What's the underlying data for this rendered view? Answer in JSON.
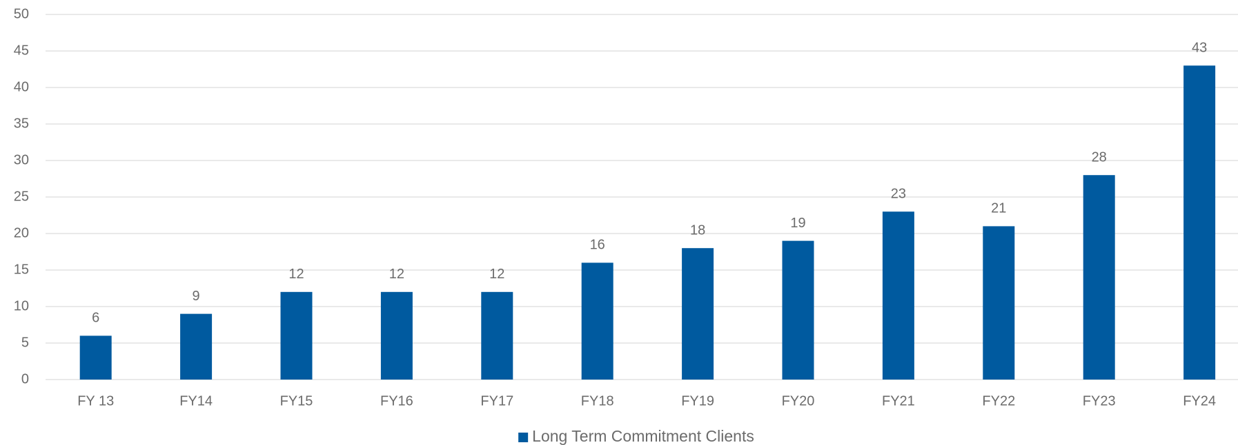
{
  "chart_data": {
    "type": "bar",
    "categories": [
      "FY 13",
      "FY14",
      "FY15",
      "FY16",
      "FY17",
      "FY18",
      "FY19",
      "FY20",
      "FY21",
      "FY22",
      "FY23",
      "FY24"
    ],
    "series": [
      {
        "name": "Long Term Commitment Clients",
        "color": "#005a9f",
        "values": [
          6,
          9,
          12,
          12,
          12,
          16,
          18,
          19,
          23,
          21,
          28,
          43
        ]
      }
    ],
    "ylim": [
      0,
      50
    ],
    "yticks": [
      0,
      5,
      10,
      15,
      20,
      25,
      30,
      35,
      40,
      45,
      50
    ],
    "grid": true,
    "legend": "bottom"
  }
}
